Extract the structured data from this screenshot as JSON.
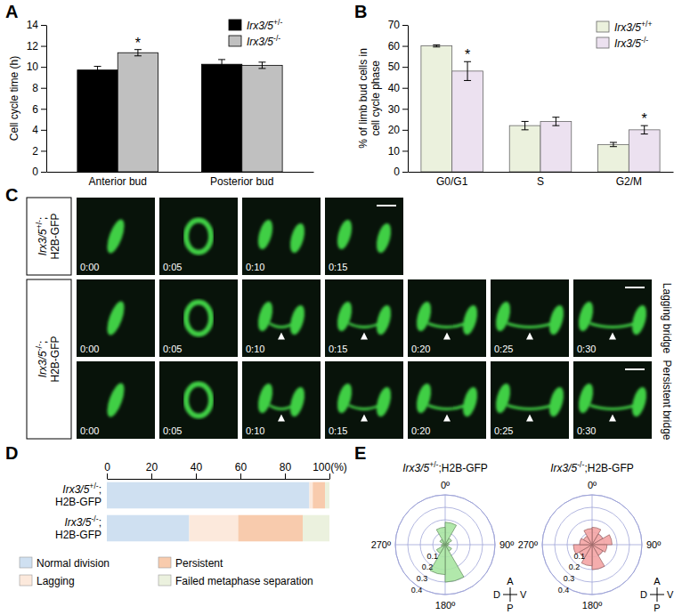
{
  "chart_data": [
    {
      "panel": "A",
      "type": "bar",
      "ylabel": "Cell cycle time (h)",
      "categories": [
        "Anterior bud",
        "Posterior bud"
      ],
      "series": [
        {
          "name": "Irx3/5+/-",
          "color": "#000000",
          "values": [
            9.7,
            10.25
          ],
          "errors": [
            0.35,
            0.45
          ]
        },
        {
          "name": "Irx3/5-/-",
          "color": "#c0c0c0",
          "values": [
            11.35,
            10.15
          ],
          "errors": [
            0.3,
            0.3
          ],
          "significance": [
            "*",
            null
          ]
        }
      ],
      "ylim": [
        0,
        14
      ],
      "yticks": [
        0,
        2,
        4,
        6,
        8,
        10,
        12,
        14
      ],
      "legend": "upper right"
    },
    {
      "panel": "B",
      "type": "bar",
      "ylabel": "% of limb bud cells in cell cycle phase",
      "categories": [
        "G0/G1",
        "S",
        "G2/M"
      ],
      "series": [
        {
          "name": "Irx3/5+/+",
          "color": "#ebf1dd",
          "values": [
            60,
            22,
            13
          ],
          "errors": [
            0.5,
            2,
            1
          ]
        },
        {
          "name": "Irx3/5-/-",
          "color": "#ece1f0",
          "values": [
            48,
            24,
            20
          ],
          "errors": [
            4.5,
            2,
            2
          ],
          "significance": [
            "*",
            null,
            "*"
          ]
        }
      ],
      "ylim": [
        0,
        70
      ],
      "yticks": [
        0,
        10,
        20,
        30,
        40,
        50,
        60,
        70
      ],
      "legend": "upper right"
    },
    {
      "panel": "C",
      "type": "image_sequence",
      "groups": [
        {
          "label": "Irx3/5+/-;H2B-GFP",
          "rows": [
            {
              "times": [
                "0:00",
                "0:05",
                "0:10",
                "0:15"
              ]
            }
          ]
        },
        {
          "label": "Irx3/5-/-;H2B-GFP",
          "rows": [
            {
              "times": [
                "0:00",
                "0:05",
                "0:10",
                "0:15",
                "0:20",
                "0:25",
                "0:30"
              ],
              "side_label": "Lagging bridge"
            },
            {
              "times": [
                "0:00",
                "0:05",
                "0:10",
                "0:15",
                "0:20",
                "0:25",
                "0:30"
              ],
              "side_label": "Persistent bridge"
            }
          ]
        }
      ]
    },
    {
      "panel": "D",
      "type": "bar",
      "orientation": "horizontal",
      "stacked": true,
      "categories": [
        "Irx3/5+/-;H2B-GFP",
        "Irx3/5-/-;H2B-GFP"
      ],
      "series": [
        {
          "name": "Normal division",
          "color": "#cfe0f1",
          "values": [
            91,
            37
          ]
        },
        {
          "name": "Lagging",
          "color": "#fce9dc",
          "values": [
            1.5,
            22
          ]
        },
        {
          "name": "Persistent",
          "color": "#f8cbad",
          "values": [
            5.5,
            29
          ]
        },
        {
          "name": "Failed metaphase separation",
          "color": "#ebf1de",
          "values": [
            2,
            12
          ]
        }
      ],
      "xlim": [
        0,
        100
      ],
      "xticks": [
        0,
        20,
        40,
        60,
        80,
        {
          "value": 100,
          "label": "100(%)"
        }
      ],
      "legend": "bottom"
    },
    {
      "panel": "E",
      "type": "polar_bar",
      "title": "Irx3/5+/-;H2B-GFP",
      "x": [
        0,
        30,
        60,
        90,
        120,
        150,
        180,
        210,
        240,
        270,
        300,
        330
      ],
      "values": [
        0.18,
        0.06,
        0.03,
        0.02,
        0.06,
        0.3,
        0.24,
        0.08,
        0.03,
        0.02,
        0.05,
        0.14
      ],
      "color": "#a9e5a2",
      "xlim": [
        0,
        360
      ],
      "xticks": [
        {
          "value": 0,
          "label": "0º"
        },
        {
          "value": 90,
          "label": "90º"
        },
        {
          "value": 180,
          "label": "180º"
        },
        {
          "value": 270,
          "label": "270º"
        }
      ],
      "ylim": [
        0,
        0.4
      ],
      "yticks": [
        0.1,
        0.2,
        0.3,
        0.4
      ],
      "grid": true,
      "compass": {
        "up": "A",
        "down": "P",
        "left": "D",
        "right": "V"
      }
    },
    {
      "type": "polar_bar",
      "title": "Irx3/5-/-;H2B-GFP",
      "x": [
        0,
        30,
        60,
        90,
        120,
        150,
        180,
        210,
        240,
        270,
        300,
        330
      ],
      "values": [
        0.14,
        0.1,
        0.16,
        0.12,
        0.1,
        0.2,
        0.17,
        0.12,
        0.15,
        0.1,
        0.08,
        0.13
      ],
      "color": "#f4a4a4",
      "xlim": [
        0,
        360
      ],
      "xticks": [
        {
          "value": 0,
          "label": "0º"
        },
        {
          "value": 90,
          "label": "90º"
        },
        {
          "value": 180,
          "label": "180º"
        },
        {
          "value": 270,
          "label": "270º"
        }
      ],
      "ylim": [
        0,
        0.4
      ],
      "yticks": [
        0.1,
        0.2,
        0.3,
        0.4
      ],
      "grid": true,
      "compass": {
        "up": "A",
        "down": "P",
        "left": "D",
        "right": "V"
      }
    }
  ]
}
